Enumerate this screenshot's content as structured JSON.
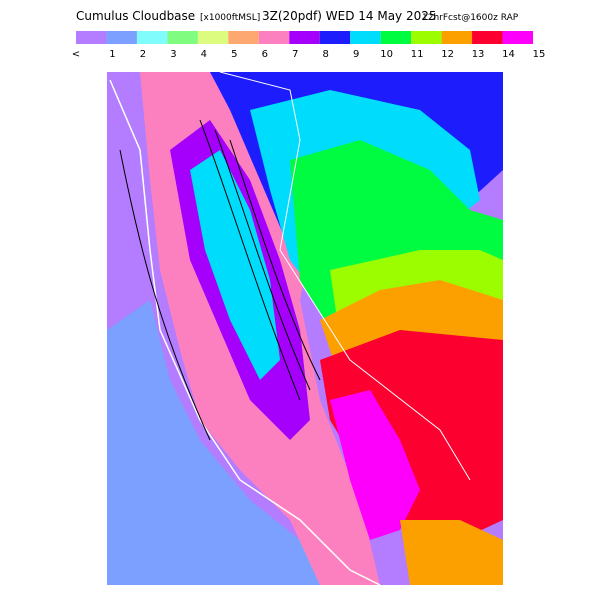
{
  "header": {
    "title_parts": [
      "Cumulus Cloudbase",
      "[x1000ftMSL]",
      "3Z(20pdf) WED 14 May 2025",
      "12hrFcst@1600z RAP"
    ]
  },
  "legend": {
    "labels": [
      "<",
      "1",
      "2",
      "3",
      "4",
      "5",
      "6",
      "7",
      "8",
      "9",
      "10",
      "11",
      "12",
      "13",
      "14",
      "15"
    ],
    "colors": [
      "#b47cff",
      "#7ca0ff",
      "#80fcfc",
      "#80fc80",
      "#dcfc80",
      "#fca870",
      "#fc80c0",
      "#a400fc",
      "#1c1cfc",
      "#00dcfc",
      "#00fc40",
      "#9cfc00",
      "#fca000",
      "#fc0030",
      "#fc00fc"
    ]
  }
}
